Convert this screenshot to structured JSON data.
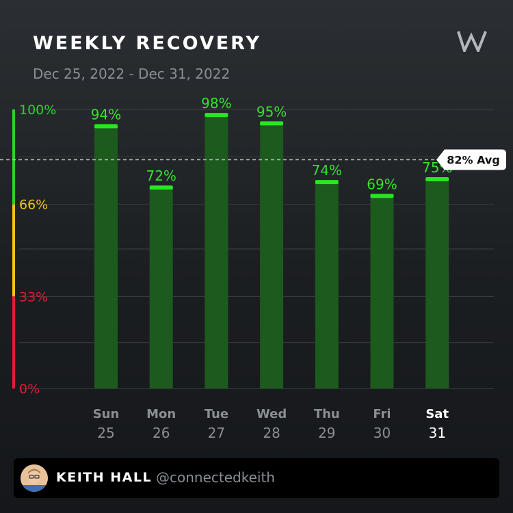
{
  "header": {
    "title": "WEEKLY RECOVERY",
    "date_range": "Dec 25, 2022 - Dec 31, 2022",
    "logo_icon": "whoop-logo-icon"
  },
  "chart_data": {
    "type": "bar",
    "title": "WEEKLY RECOVERY",
    "subtitle": "Dec 25, 2022 - Dec 31, 2022",
    "categories": [
      {
        "day": "Sun",
        "date": "25"
      },
      {
        "day": "Mon",
        "date": "26"
      },
      {
        "day": "Tue",
        "date": "27"
      },
      {
        "day": "Wed",
        "date": "28"
      },
      {
        "day": "Thu",
        "date": "29"
      },
      {
        "day": "Fri",
        "date": "30"
      },
      {
        "day": "Sat",
        "date": "31"
      }
    ],
    "values": [
      94,
      72,
      98,
      95,
      74,
      69,
      75
    ],
    "value_labels": [
      "94%",
      "72%",
      "98%",
      "95%",
      "74%",
      "69%",
      "75%"
    ],
    "highlighted_index": 6,
    "ylim": [
      0,
      100
    ],
    "y_ticks": [
      {
        "value": 100,
        "label": "100%",
        "color": "#2fd12f"
      },
      {
        "value": 66,
        "label": "66%",
        "color": "#f2c418"
      },
      {
        "value": 33,
        "label": "33%",
        "color": "#e01d35"
      },
      {
        "value": 0,
        "label": "0%",
        "color": "#e01d35"
      }
    ],
    "zones": [
      {
        "from": 66,
        "to": 100,
        "color": "#2fd12f"
      },
      {
        "from": 33,
        "to": 66,
        "color": "#f2c418"
      },
      {
        "from": 0,
        "to": 33,
        "color": "#e01d35"
      }
    ],
    "average": {
      "value": 82,
      "label": "82% Avg"
    },
    "colors": {
      "bar": "#1c5a1e",
      "bar_cap": "#27e81f",
      "value_label": "#37e22f",
      "grid": "#3a3e42"
    }
  },
  "footer": {
    "name": "KEITH HALL",
    "handle": "@connectedkeith",
    "avatar_icon": "user-avatar-icon"
  }
}
